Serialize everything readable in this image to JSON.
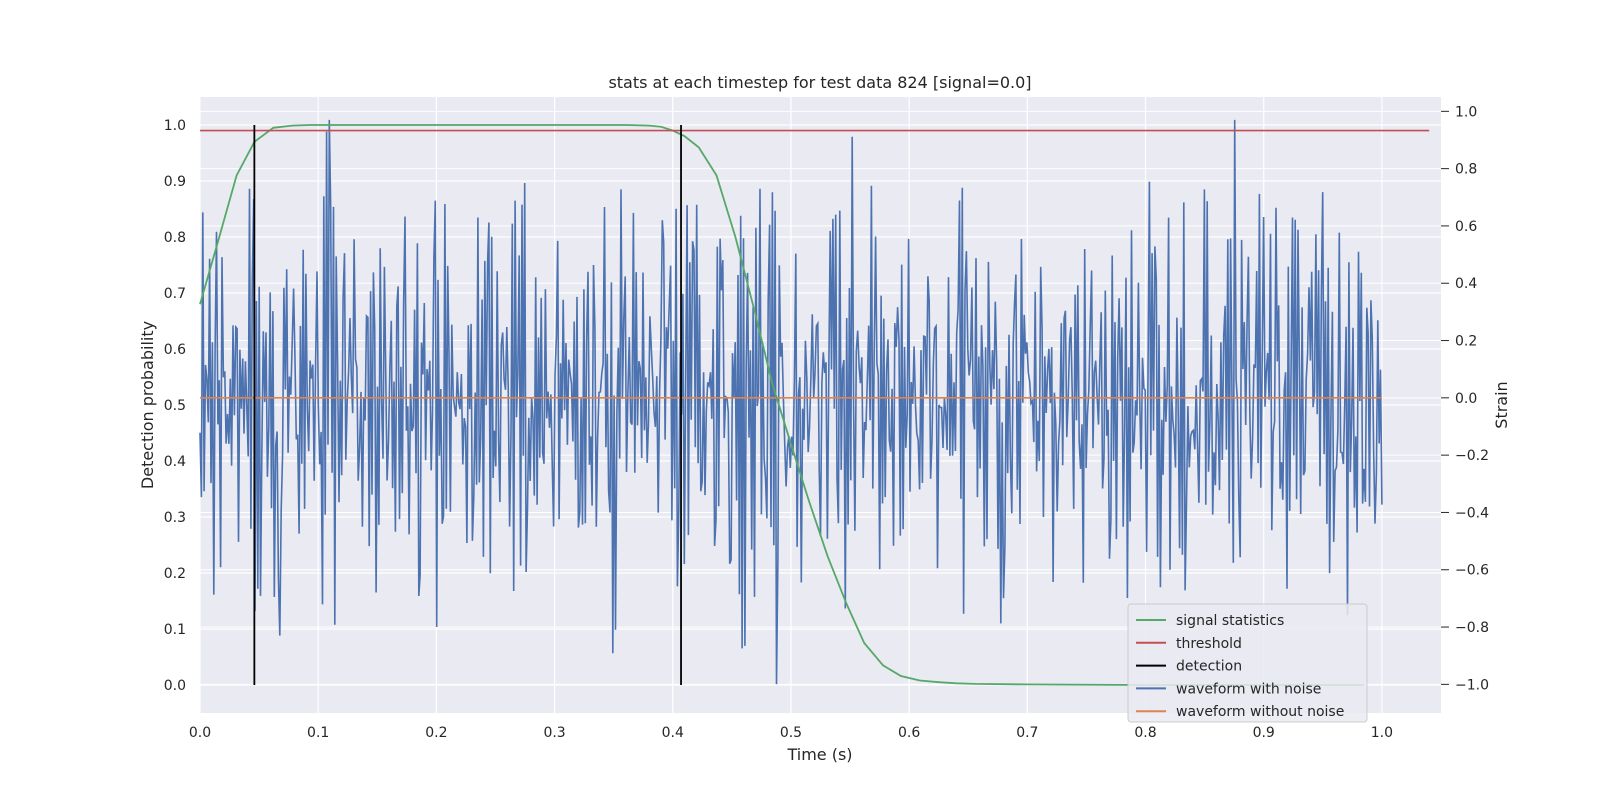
{
  "chart_data": {
    "type": "line",
    "title": "stats at each timestep for test data 824 [signal=0.0]",
    "xlabel": "Time (s)",
    "ylabel_left": "Detection probability",
    "ylabel_right": "Strain",
    "xlim": [
      0.0,
      1.05
    ],
    "ylim_left": [
      -0.05,
      1.05
    ],
    "ylim_right": [
      -1.1,
      1.05
    ],
    "x_ticks": [
      "0.0",
      "0.1",
      "0.2",
      "0.3",
      "0.4",
      "0.5",
      "0.6",
      "0.7",
      "0.8",
      "0.9",
      "1.0"
    ],
    "y_left_ticks": [
      "0.0",
      "0.1",
      "0.2",
      "0.3",
      "0.4",
      "0.5",
      "0.6",
      "0.7",
      "0.8",
      "0.9",
      "1.0"
    ],
    "y_right_ticks": [
      "−1.0",
      "−0.8",
      "−0.6",
      "−0.4",
      "−0.2",
      "0.0",
      "0.2",
      "0.4",
      "0.6",
      "0.8",
      "1.0"
    ],
    "grid": true,
    "legend_position": "lower-right",
    "legend": [
      {
        "label": "signal statistics",
        "color": "#55a868"
      },
      {
        "label": "threshold",
        "color": "#c44e52"
      },
      {
        "label": "detection",
        "color": "#000000"
      },
      {
        "label": "waveform with noise",
        "color": "#4c72b0"
      },
      {
        "label": "waveform without noise",
        "color": "#dd8452"
      }
    ],
    "series": [
      {
        "name": "signal statistics",
        "axis": "left",
        "color": "#55a868",
        "x": [
          0.0,
          0.015,
          0.031,
          0.046,
          0.062,
          0.078,
          0.093,
          0.109,
          0.2,
          0.3,
          0.36,
          0.38,
          0.39,
          0.4,
          0.41,
          0.422,
          0.437,
          0.453,
          0.469,
          0.484,
          0.5,
          0.515,
          0.531,
          0.547,
          0.562,
          0.578,
          0.593,
          0.609,
          0.625,
          0.64,
          0.656,
          0.7,
          0.8,
          0.9,
          0.985
        ],
        "y": [
          0.68,
          0.79,
          0.91,
          0.97,
          0.995,
          0.999,
          1.0,
          1.0,
          1.0,
          1.0,
          1.0,
          0.999,
          0.997,
          0.99,
          0.98,
          0.96,
          0.91,
          0.8,
          0.67,
          0.54,
          0.43,
          0.33,
          0.23,
          0.145,
          0.075,
          0.035,
          0.016,
          0.008,
          0.005,
          0.003,
          0.002,
          0.001,
          0.0,
          0.0,
          0.0
        ]
      },
      {
        "name": "threshold",
        "axis": "left",
        "color": "#c44e52",
        "x": [
          0.0,
          1.04
        ],
        "y": [
          0.99,
          0.99
        ]
      },
      {
        "name": "detection",
        "axis": "left",
        "color": "#000000",
        "segments": [
          {
            "x": 0.046,
            "y0": 0.0,
            "y1": 1.0
          },
          {
            "x": 0.407,
            "y0": 0.0,
            "y1": 1.0
          }
        ]
      },
      {
        "name": "waveform with noise",
        "axis": "right",
        "color": "#4c72b0",
        "x_start": 0.0,
        "x_end": 1.0,
        "y": [
          0.3,
          -0.3,
          0.32,
          -0.07,
          0.28,
          -0.1,
          0.3,
          -0.6,
          0.15,
          -0.35,
          0.25,
          -0.2,
          0.1,
          -0.4,
          0.2,
          0.0,
          0.55,
          -0.6,
          0.45,
          -0.3,
          0.2,
          -0.5,
          0.35,
          -0.35,
          0.05,
          -0.15,
          0.25,
          -0.45,
          0.4,
          -0.2,
          0.1,
          -0.4,
          0.3,
          -0.05,
          0.2,
          -0.25,
          0.45,
          -0.3,
          0.35,
          0.0,
          0.15,
          -0.5,
          0.4,
          -0.25,
          0.5,
          -0.1,
          0.05,
          0.35,
          -0.2,
          0.75,
          -0.4,
          0.1,
          -0.3,
          0.3,
          -0.55,
          0.4,
          0.0,
          -0.4,
          0.25,
          -0.15,
          0.35,
          -0.3,
          0.7,
          -0.2,
          0.3,
          -0.3,
          0.1,
          -0.45,
          0.15,
          0.4,
          -0.25,
          -0.6,
          0.2,
          0.45,
          -0.1,
          0.3,
          -0.2,
          0.15,
          -0.35,
          0.4,
          -0.1,
          0.2,
          -0.4,
          0.3,
          -0.3,
          0.8,
          -0.2,
          0.1,
          0.35,
          -0.25,
          0.05,
          -0.3,
          0.4,
          -0.35,
          0.25,
          -0.15,
          0.3,
          -0.45,
          0.2,
          -0.1,
          0.5,
          -0.3,
          0.35,
          -0.2,
          0.15,
          -0.55,
          0.45,
          0.0,
          -0.3,
          0.3,
          -0.05,
          0.2,
          -0.35,
          0.25,
          -0.2,
          0.4,
          -0.4,
          0.15,
          -0.1,
          0.35,
          -0.25,
          0.1,
          -0.3,
          0.25,
          -0.15,
          0.45,
          -0.5,
          0.3,
          0.05,
          -0.35,
          0.2,
          -0.2,
          0.35,
          -0.1,
          0.15,
          -0.45,
          0.4,
          -0.3,
          0.1,
          0.3,
          -0.2,
          0.25,
          -0.05,
          -0.4,
          0.3,
          -0.15,
          0.2,
          -0.3,
          0.4,
          -0.25,
          0.15,
          -0.35,
          0.35,
          0.0,
          -0.2,
          0.25
        ],
        "y_extremes": [
          {
            "x": 0.042,
            "y": 0.73
          },
          {
            "x": 0.068,
            "y": -0.83
          },
          {
            "x": 0.109,
            "y": 0.97
          },
          {
            "x": 0.2,
            "y": -0.8
          },
          {
            "x": 0.474,
            "y": 0.73
          },
          {
            "x": 0.488,
            "y": -1.0
          },
          {
            "x": 0.875,
            "y": 0.97
          }
        ]
      },
      {
        "name": "waveform without noise",
        "axis": "right",
        "color": "#dd8452",
        "x": [
          0.0,
          1.0
        ],
        "y": [
          0.0,
          0.0
        ]
      }
    ]
  }
}
